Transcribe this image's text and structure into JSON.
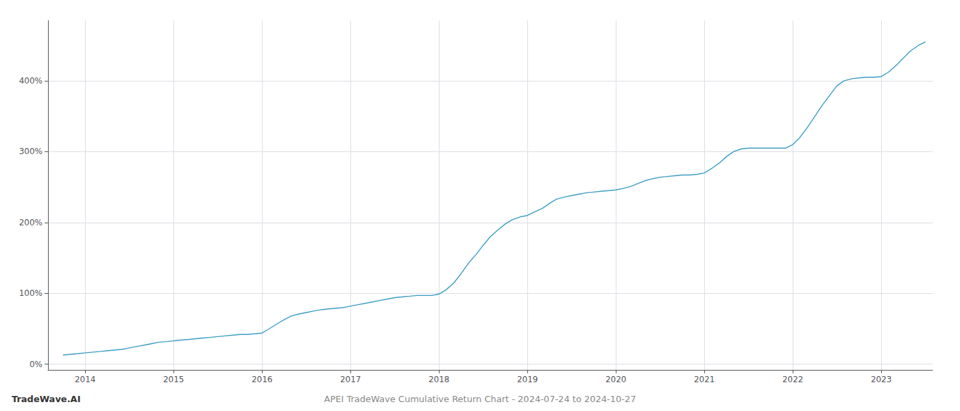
{
  "chart_data": {
    "type": "line",
    "title": "APEI TradeWave Cumulative Return Chart - 2024-07-24 to 2024-10-27",
    "annotations": [
      "TradeWave.AI"
    ],
    "color": "#3a9cc4",
    "grid": true,
    "xlim": [
      2013.58,
      2023.58
    ],
    "ylim": [
      -0.08,
      4.85
    ],
    "xticks": [
      2014,
      2015,
      2016,
      2017,
      2018,
      2019,
      2020,
      2021,
      2022,
      2023
    ],
    "yticks": [
      {
        "value": 0.0,
        "label": "0%"
      },
      {
        "value": 1.0,
        "label": "100%"
      },
      {
        "value": 2.0,
        "label": "200%"
      },
      {
        "value": 3.0,
        "label": "300%"
      },
      {
        "value": 4.0,
        "label": "400%"
      }
    ],
    "x": [
      2013.75,
      2013.83,
      2013.92,
      2014.0,
      2014.08,
      2014.17,
      2014.25,
      2014.33,
      2014.42,
      2014.5,
      2014.58,
      2014.67,
      2014.75,
      2014.83,
      2014.92,
      2015.0,
      2015.08,
      2015.17,
      2015.25,
      2015.33,
      2015.42,
      2015.5,
      2015.58,
      2015.67,
      2015.75,
      2015.83,
      2015.92,
      2016.0,
      2016.08,
      2016.17,
      2016.25,
      2016.33,
      2016.42,
      2016.5,
      2016.58,
      2016.67,
      2016.75,
      2016.83,
      2016.92,
      2017.0,
      2017.08,
      2017.17,
      2017.25,
      2017.33,
      2017.42,
      2017.5,
      2017.58,
      2017.67,
      2017.75,
      2017.83,
      2017.92,
      2018.0,
      2018.08,
      2018.17,
      2018.25,
      2018.33,
      2018.42,
      2018.5,
      2018.58,
      2018.67,
      2018.75,
      2018.83,
      2018.92,
      2019.0,
      2019.08,
      2019.17,
      2019.25,
      2019.33,
      2019.42,
      2019.5,
      2019.58,
      2019.67,
      2019.75,
      2019.83,
      2019.92,
      2020.0,
      2020.08,
      2020.17,
      2020.25,
      2020.33,
      2020.42,
      2020.5,
      2020.58,
      2020.67,
      2020.75,
      2020.83,
      2020.92,
      2021.0,
      2021.08,
      2021.17,
      2021.25,
      2021.33,
      2021.42,
      2021.5,
      2021.58,
      2021.67,
      2021.75,
      2021.83,
      2021.92,
      2022.0,
      2022.08,
      2022.17,
      2022.25,
      2022.33,
      2022.42,
      2022.5,
      2022.58,
      2022.67,
      2022.75,
      2022.83,
      2022.92,
      2023.0,
      2023.08,
      2023.17,
      2023.25,
      2023.33,
      2023.42,
      2023.5
    ],
    "values": [
      0.13,
      0.14,
      0.15,
      0.16,
      0.17,
      0.18,
      0.19,
      0.2,
      0.21,
      0.23,
      0.25,
      0.27,
      0.29,
      0.31,
      0.32,
      0.33,
      0.34,
      0.35,
      0.36,
      0.37,
      0.38,
      0.39,
      0.4,
      0.41,
      0.42,
      0.42,
      0.43,
      0.44,
      0.5,
      0.57,
      0.63,
      0.68,
      0.71,
      0.73,
      0.75,
      0.77,
      0.78,
      0.79,
      0.8,
      0.82,
      0.84,
      0.86,
      0.88,
      0.9,
      0.92,
      0.94,
      0.95,
      0.96,
      0.97,
      0.97,
      0.97,
      0.99,
      1.05,
      1.15,
      1.28,
      1.42,
      1.55,
      1.68,
      1.8,
      1.9,
      1.98,
      2.04,
      2.08,
      2.1,
      2.15,
      2.2,
      2.27,
      2.33,
      2.36,
      2.38,
      2.4,
      2.42,
      2.43,
      2.44,
      2.45,
      2.46,
      2.48,
      2.51,
      2.55,
      2.59,
      2.62,
      2.64,
      2.65,
      2.66,
      2.67,
      2.67,
      2.68,
      2.7,
      2.76,
      2.84,
      2.93,
      3.0,
      3.04,
      3.05,
      3.05,
      3.05,
      3.05,
      3.05,
      3.05,
      3.1,
      3.2,
      3.35,
      3.5,
      3.65,
      3.8,
      3.93,
      4.0,
      4.03,
      4.04,
      4.05,
      4.05,
      4.06,
      4.12,
      4.22,
      4.32,
      4.42,
      4.5,
      4.55
    ]
  }
}
